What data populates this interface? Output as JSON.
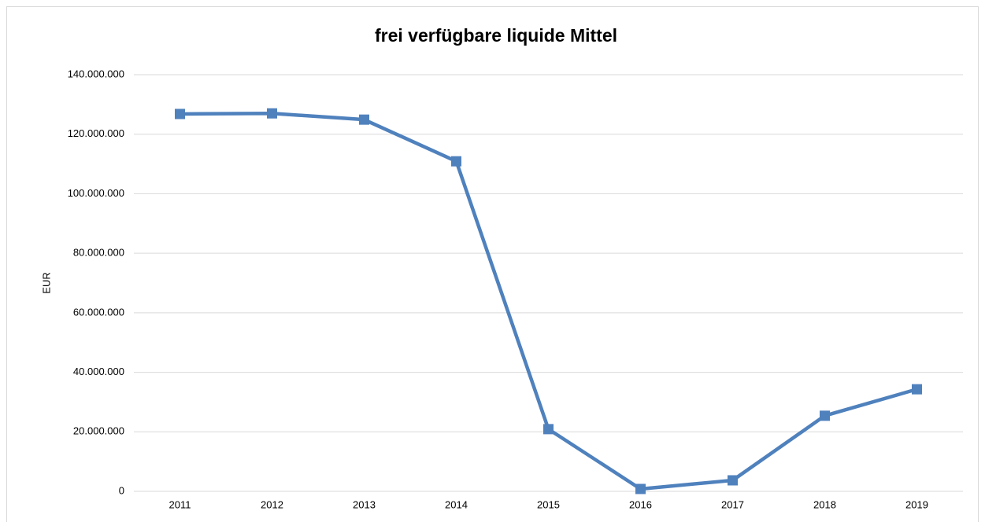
{
  "chart_data": {
    "type": "line",
    "title": "frei verfügbare liquide Mittel",
    "y_label": "EUR",
    "categories": [
      "2011",
      "2012",
      "2013",
      "2014",
      "2015",
      "2016",
      "2017",
      "2018",
      "2019"
    ],
    "series": [
      {
        "name": "frei verfügbare liquide Mittel",
        "color": "#4f81bd",
        "values": [
          126800000,
          127000000,
          124900000,
          110900000,
          20900000,
          800000,
          3700000,
          25400000,
          34300000
        ]
      }
    ],
    "ylim": [
      0,
      140000000
    ],
    "yticks": [
      0,
      {
        "value": 20000000,
        "label": "20.000.000"
      },
      {
        "value": 40000000,
        "label": "40.000.000"
      },
      {
        "value": 60000000,
        "label": "60.000.000"
      },
      {
        "value": 80000000,
        "label": "80.000.000"
      },
      {
        "value": 100000000,
        "label": "100.000.000"
      },
      {
        "value": 120000000,
        "label": "120.000.000"
      },
      {
        "value": 140000000,
        "label": "140.000.000"
      }
    ],
    "grid": true
  }
}
